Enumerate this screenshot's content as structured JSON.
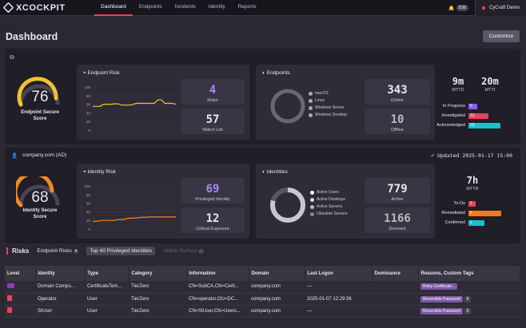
{
  "topbar": {
    "logo": "XCOCKPIT",
    "nav": [
      "Dashboard",
      "Endpoints",
      "Incidents",
      "Identity",
      "Reports"
    ],
    "notifications": "838",
    "user": "CyCraft Demo"
  },
  "page": {
    "title": "Dashboard",
    "customize": "Customize"
  },
  "endpoint": {
    "score": "76",
    "score_label": "Endpoint Secure Score",
    "risk_title": "Endpoint Risk",
    "risks": "4",
    "risks_label": "Risks",
    "watch": "57",
    "watch_label": "Watch List",
    "yticks": [
      "100",
      "80",
      "60",
      "40",
      "20",
      "0"
    ],
    "chart_data": {
      "type": "line",
      "y": [
        55,
        55,
        55,
        60,
        60,
        60,
        61,
        61,
        58,
        58,
        58,
        59,
        62,
        62,
        62,
        62,
        62,
        62,
        70,
        70,
        62,
        62,
        62,
        60
      ],
      "ylim": [
        0,
        100
      ]
    }
  },
  "endpoints": {
    "title": "Endpoints",
    "legend": [
      "macOS",
      "Linux",
      "Windows Server",
      "Windows Desktop"
    ],
    "online": "343",
    "online_label": "Online",
    "offline": "10",
    "offline_label": "Offline"
  },
  "response": {
    "mttd": "9m",
    "mttd_label": "MTTD",
    "mtti": "20m",
    "mtti_label": "MTTI",
    "rows": [
      {
        "label": "In Progress",
        "value": "5",
        "color": "#8b5cf6",
        "pct": 0.1
      },
      {
        "label": "Investigated",
        "value": "12",
        "color": "#e8435a",
        "pct": 0.4
      },
      {
        "label": "Acknowledged",
        "value": "18",
        "color": "#19c1c9",
        "pct": 0.7
      }
    ]
  },
  "identity": {
    "domain": "company.com (AD)",
    "updated": "Updated 2025-01-17 15:00",
    "score": "68",
    "score_label": "Identity Secure Score",
    "risk_title": "Identity Risk",
    "priv": "69",
    "priv_label": "Privileged Identity",
    "crit": "12",
    "crit_label": "Critical Exposure",
    "yticks": [
      "100",
      "80",
      "60",
      "40",
      "20",
      "0"
    ],
    "chart_data": {
      "type": "line",
      "y": [
        18,
        18,
        20,
        20,
        20,
        20,
        22,
        22,
        25,
        25,
        26,
        27,
        27,
        28,
        28,
        28,
        28,
        28,
        28,
        28
      ],
      "ylim": [
        0,
        100
      ]
    }
  },
  "identities": {
    "title": "Identities",
    "legend": [
      "Active Users",
      "Active Desktops",
      "Active Servers",
      "Obsolete Servers"
    ],
    "active": "779",
    "active_label": "Active",
    "dormant": "1166",
    "dormant_label": "Dormant"
  },
  "mttr": {
    "value": "7h",
    "label": "MTTR",
    "rows": [
      {
        "label": "To-Do",
        "value": "1",
        "color": "#e8435a",
        "pct": 0.06
      },
      {
        "label": "Remediated",
        "value": "5",
        "color": "#f07b1f",
        "pct": 0.72
      },
      {
        "label": "Confirmed",
        "value": "2",
        "color": "#19c1c9",
        "pct": 0.3
      }
    ]
  },
  "risktabs": {
    "title": "Risks",
    "t1": "Endpoint Risks",
    "t1c": "4",
    "t2": "Top 40 Privileged Identities",
    "t3": "Attack Surface",
    "t3c": "0"
  },
  "table": {
    "headers": [
      "Level",
      "Identity",
      "Type",
      "Category",
      "Information",
      "Domain",
      "Last Logon",
      "Dominance",
      "Reasons, Custom Tags"
    ],
    "rows": [
      {
        "identity": "Domain Compu...",
        "type": "CertificateTem...",
        "category": "TierZero",
        "info": "CN=SubCA,CN=Certi...",
        "domain": "company.com",
        "logon": "—",
        "dominance": "",
        "tag": "Risky Certificate...",
        "more": ""
      },
      {
        "identity": "Operator",
        "type": "User",
        "category": "TierZero",
        "info": "CN=operator,OU=DC...",
        "domain": "company.com",
        "logon": "2025-01-07 12:29:36",
        "dominance": "",
        "tag": "Reversible Password",
        "more": "6"
      },
      {
        "identity": "StUser",
        "type": "User",
        "category": "TierZero",
        "info": "CN=StUser,CN=Users...",
        "domain": "company.com",
        "logon": "—",
        "dominance": "",
        "tag": "Reversible Password",
        "more": "6"
      }
    ]
  }
}
